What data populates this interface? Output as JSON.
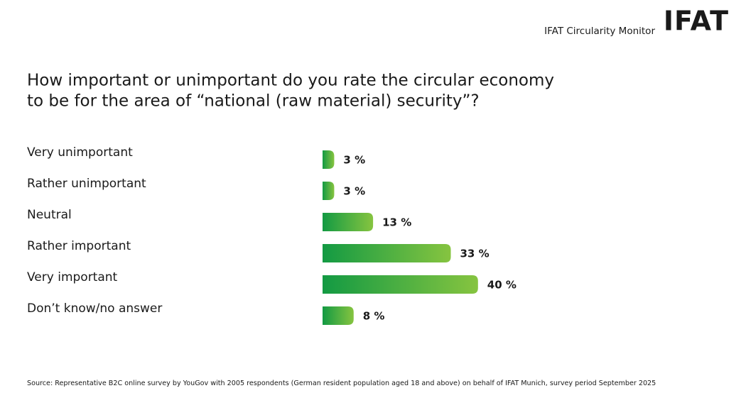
{
  "chart_data": {
    "type": "bar",
    "orientation": "horizontal",
    "brand": "IFAT Circularity Monitor",
    "logo": "IFAT",
    "title": [
      "How important or unimportant do you rate the circular economy",
      "to be for the area of “national (raw material) security”?"
    ],
    "categories": [
      "Very unimportant",
      "Rather unimportant",
      "Neutral",
      "Rather important",
      "Very important",
      "Don’t know/no answer"
    ],
    "values": [
      3,
      3,
      13,
      33,
      40,
      8
    ],
    "value_labels": [
      "3 %",
      "3 %",
      "13 %",
      "33 %",
      "40 %",
      "8 %"
    ],
    "colors": [
      "#139a43",
      "#86c440"
    ],
    "source": "Source: Representative B2C online survey by YouGov with 2005 respondents (German resident population aged 18 and above) on behalf of IFAT Munich, survey period September 2025"
  }
}
